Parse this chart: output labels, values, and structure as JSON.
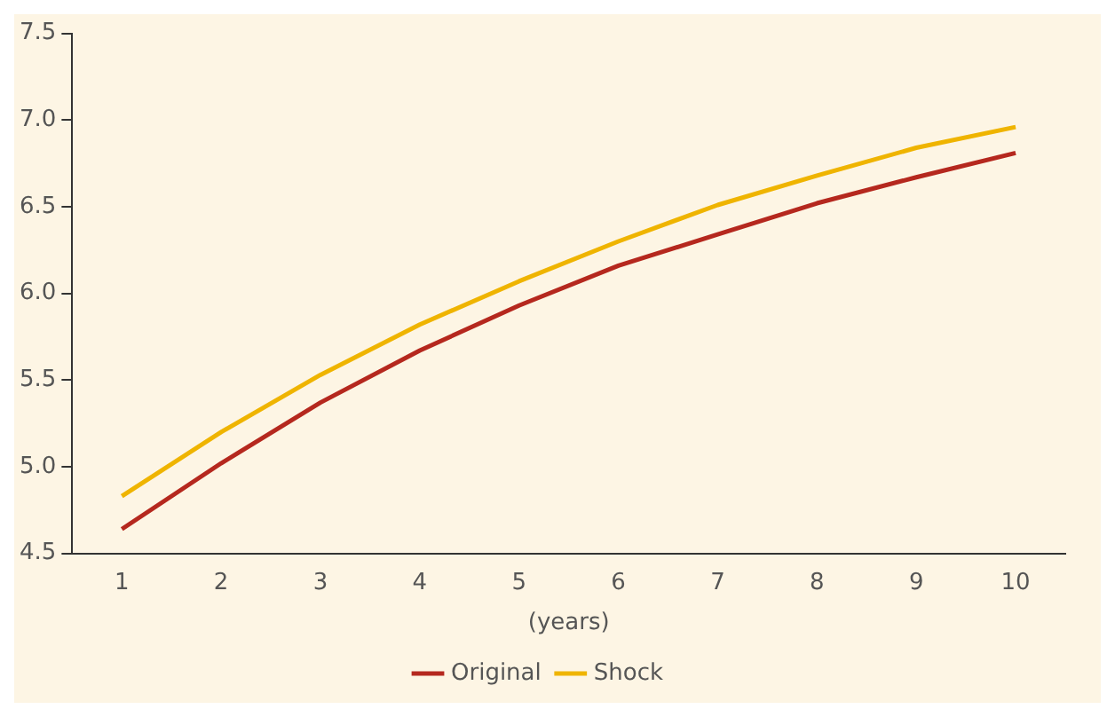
{
  "chart_data": {
    "type": "line",
    "xlabel": "(years)",
    "categories": [
      "1",
      "2",
      "3",
      "4",
      "5",
      "6",
      "7",
      "8",
      "9",
      "10"
    ],
    "series": [
      {
        "name": "Original",
        "color": "#b5281e",
        "values": [
          4.64,
          5.02,
          5.37,
          5.67,
          5.93,
          6.16,
          6.34,
          6.52,
          6.67,
          6.81
        ]
      },
      {
        "name": "Shock",
        "color": "#efb400",
        "values": [
          4.83,
          5.2,
          5.53,
          5.82,
          6.07,
          6.3,
          6.51,
          6.68,
          6.84,
          6.96
        ]
      }
    ],
    "ylim": [
      4.5,
      7.5
    ],
    "yticks": [
      4.5,
      {
        "value": 5,
        "label": "5.0"
      },
      5.5,
      {
        "value": 6,
        "label": "6.0"
      },
      6.5,
      {
        "value": 7,
        "label": "7.0"
      },
      7.5
    ],
    "grid": false,
    "legend": "bottom",
    "marker": "none",
    "line_style": "solid"
  }
}
